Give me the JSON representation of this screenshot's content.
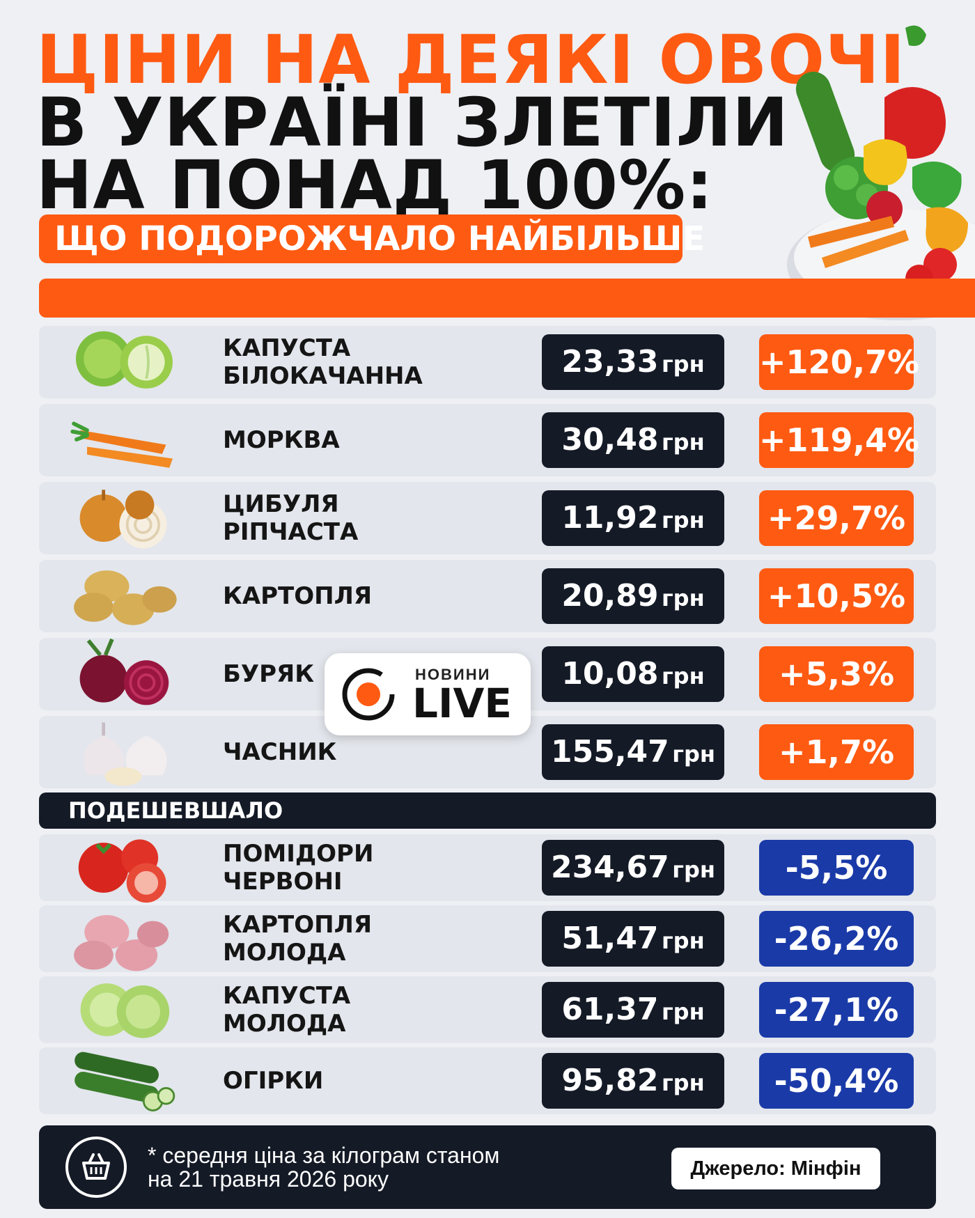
{
  "title": {
    "line1": "ЦІНИ НА ДЕЯКІ ОВОЧІ",
    "line2": "В УКРАЇНІ ЗЛЕТІЛИ",
    "line3": "НА ПОНАД 100%:",
    "subtitle": "ЩО ПОДОРОЖЧАЛО НАЙБІЛЬШЕ"
  },
  "rows_up": [
    {
      "name1": "КАПУСТА",
      "name2": "БІЛОКАЧАННА",
      "price": "23,33",
      "unit": "грн",
      "change": "+120,7%",
      "icon": "cabbage-icon"
    },
    {
      "name1": "МОРКВА",
      "name2": "",
      "price": "30,48",
      "unit": "грн",
      "change": "+119,4%",
      "icon": "carrot-icon"
    },
    {
      "name1": "ЦИБУЛЯ",
      "name2": "РІПЧАСТА",
      "price": "11,92",
      "unit": "грн",
      "change": "+29,7%",
      "icon": "onion-icon"
    },
    {
      "name1": "КАРТОПЛЯ",
      "name2": "",
      "price": "20,89",
      "unit": "грн",
      "change": "+10,5%",
      "icon": "potato-icon"
    },
    {
      "name1": "БУРЯК",
      "name2": "",
      "price": "10,08",
      "unit": "грн",
      "change": "+5,3%",
      "icon": "beet-icon"
    },
    {
      "name1": "ЧАСНИК",
      "name2": "",
      "price": "155,47",
      "unit": "грн",
      "change": "+1,7%",
      "icon": "garlic-icon"
    }
  ],
  "cheaper_label": "ПОДЕШЕВШАЛО",
  "rows_down": [
    {
      "name1": "ПОМІДОРИ",
      "name2": "ЧЕРВОНІ",
      "price": "234,67",
      "unit": "грн",
      "change": "-5,5%",
      "icon": "tomato-icon"
    },
    {
      "name1": "КАРТОПЛЯ",
      "name2": "МОЛОДА",
      "price": "51,47",
      "unit": "грн",
      "change": "-26,2%",
      "icon": "young-potato-icon"
    },
    {
      "name1": "КАПУСТА",
      "name2": "МОЛОДА",
      "price": "61,37",
      "unit": "грн",
      "change": "-27,1%",
      "icon": "young-cabbage-icon"
    },
    {
      "name1": "ОГІРКИ",
      "name2": "",
      "price": "95,82",
      "unit": "грн",
      "change": "-50,4%",
      "icon": "cucumber-icon"
    }
  ],
  "logo": {
    "top": "НОВИНИ",
    "main": "LIVE"
  },
  "footer": {
    "note1": "* середня ціна за кілограм станом",
    "note2": "на 21 травня 2026 року",
    "source": "Джерело: Мінфін"
  },
  "colors": {
    "accent": "#ff5a12",
    "dark": "#141a26",
    "down": "#1a3aa8",
    "row": "#e3e6ec"
  }
}
